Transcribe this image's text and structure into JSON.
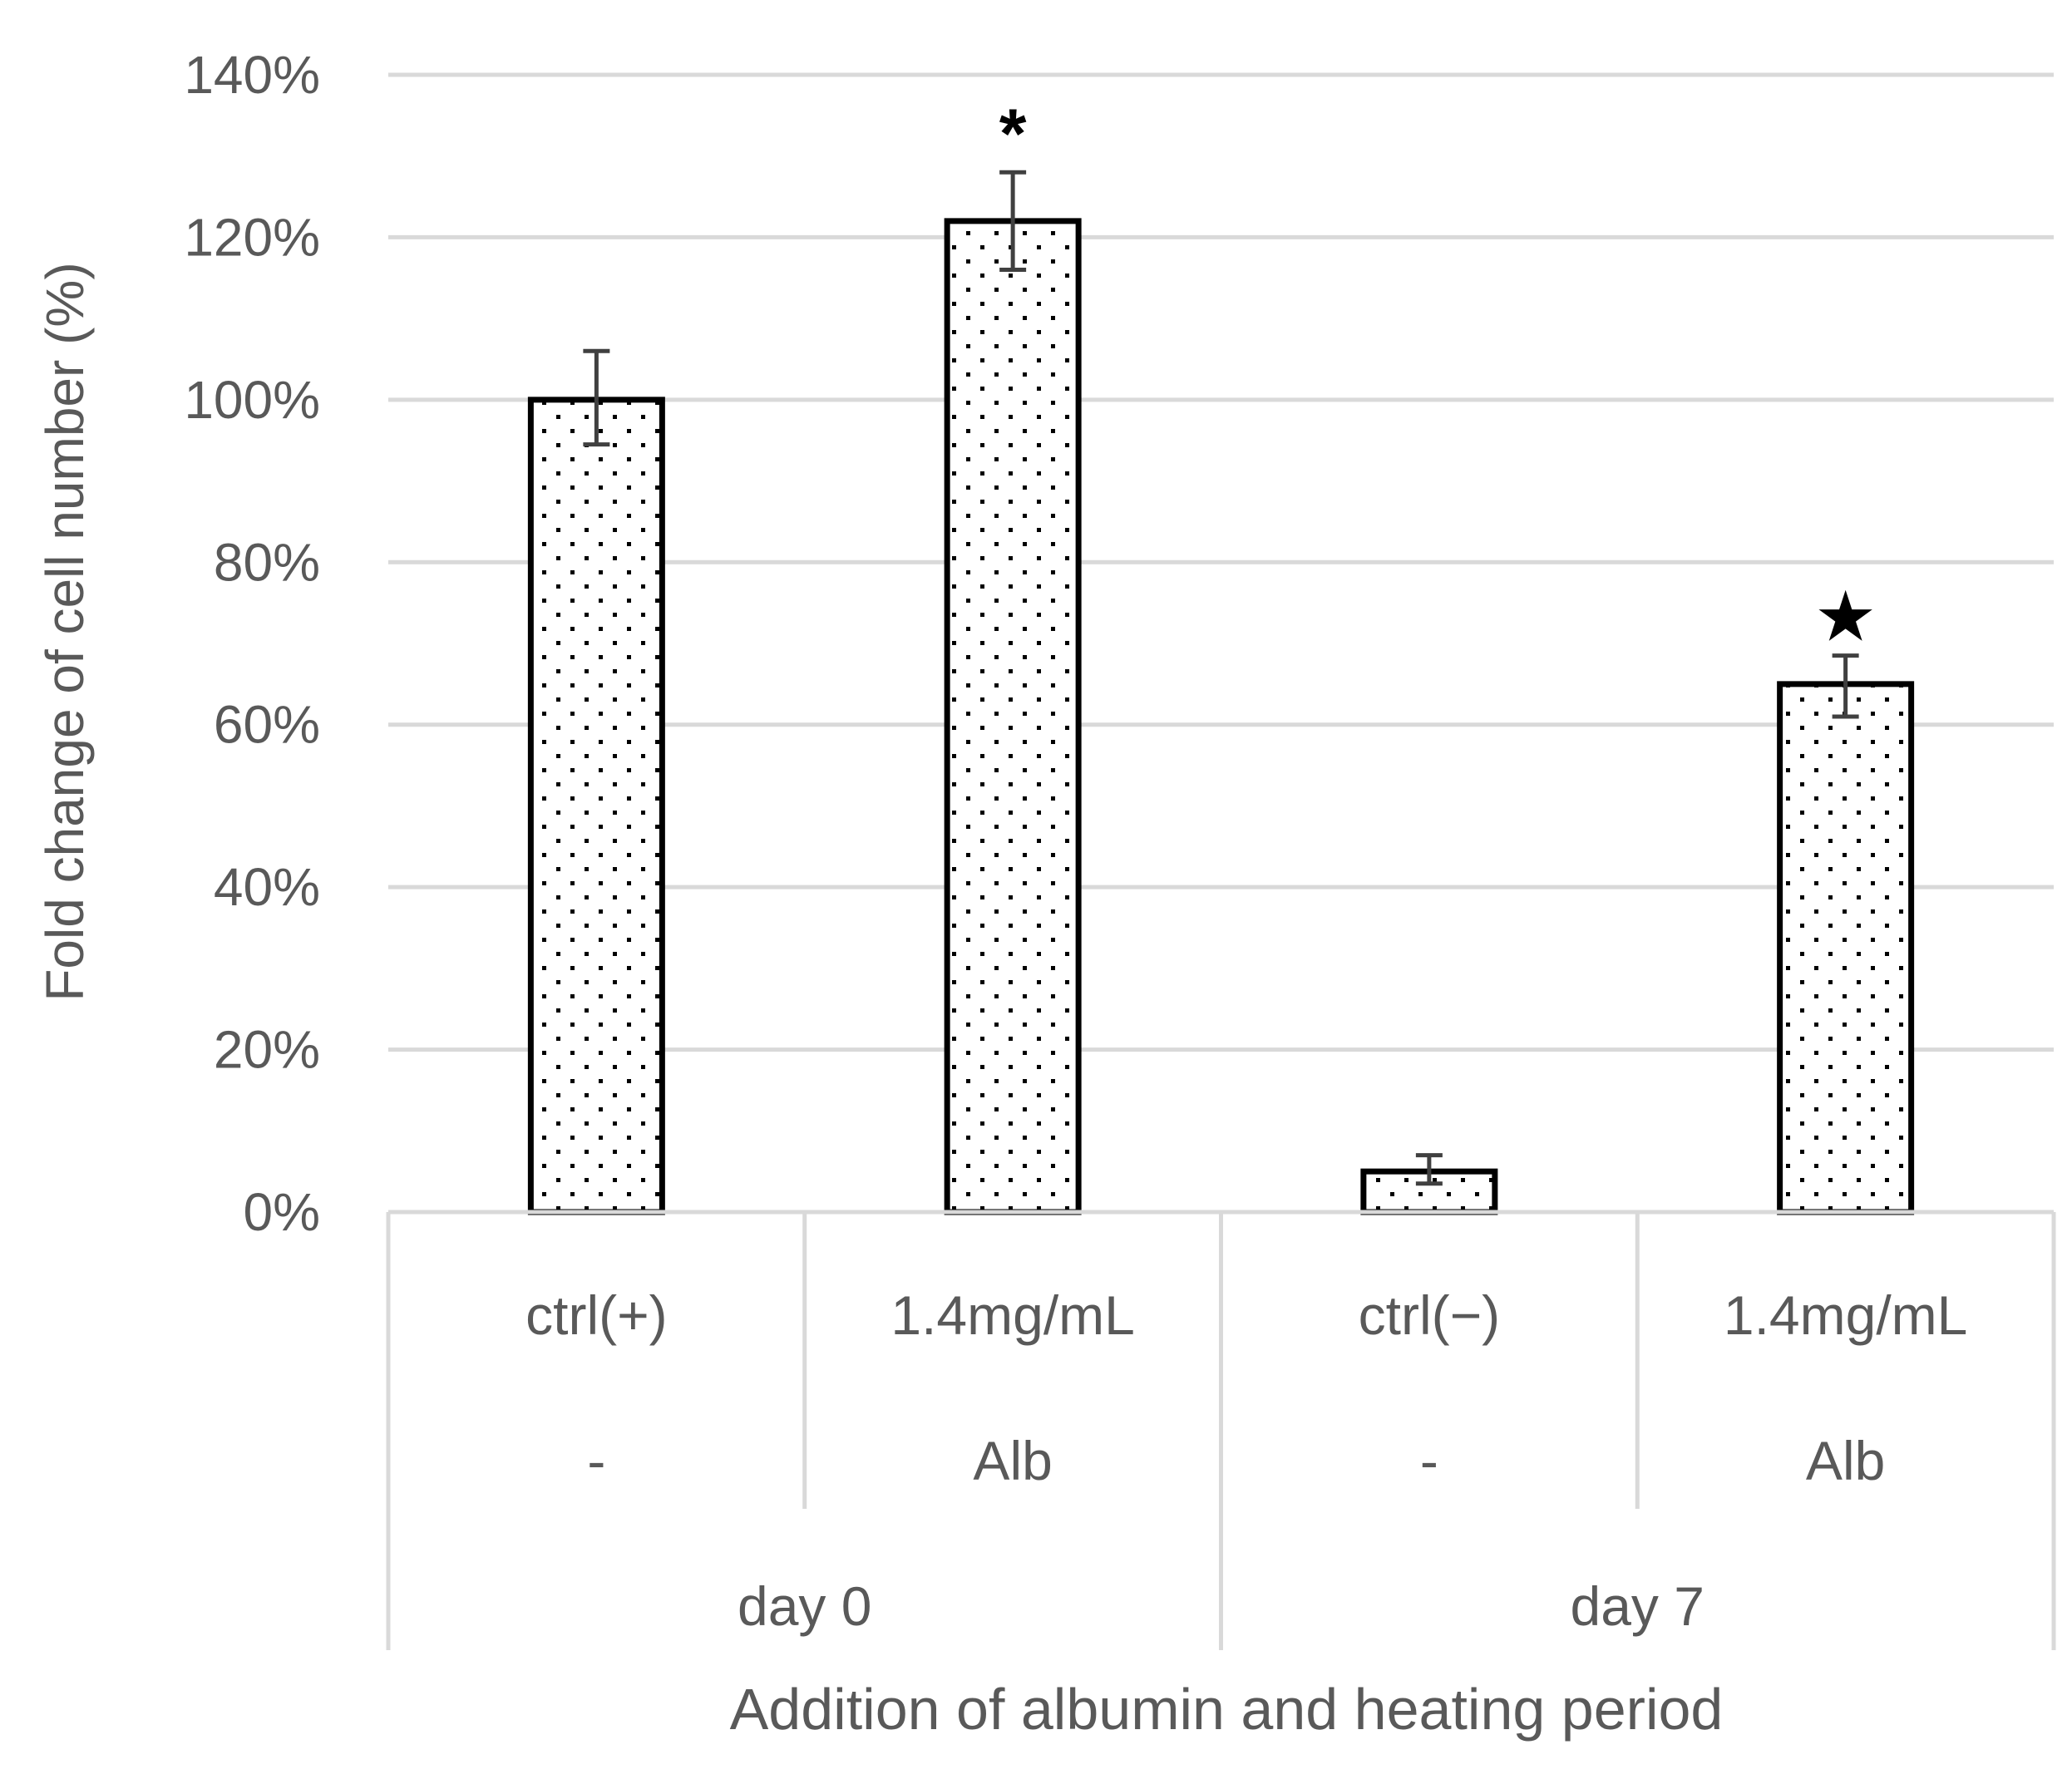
{
  "chart_data": {
    "type": "bar",
    "ylabel": "Fold change of cell number (%)",
    "xlabel": "Addition of albumin and heating period",
    "ylim": [
      0,
      140
    ],
    "yticks": [
      "0%",
      "20%",
      "40%",
      "60%",
      "80%",
      "100%",
      "120%",
      "140%"
    ],
    "grid": true,
    "legend": "none",
    "categories": [
      {
        "level1": "ctrl(+)",
        "level2": "-",
        "group": "day 0"
      },
      {
        "level1": "1.4mg/mL",
        "level2": "Alb",
        "group": "day 0"
      },
      {
        "level1": "ctrl(−)",
        "level2": "-",
        "group": "day 7"
      },
      {
        "level1": "1.4mg/mL",
        "level2": "Alb",
        "group": "day 7"
      }
    ],
    "groups": [
      "day 0",
      "day 7"
    ],
    "values": [
      100,
      122,
      5,
      65
    ],
    "error_low": [
      94.5,
      116,
      3.5,
      61
    ],
    "error_high": [
      106,
      128,
      7,
      68.5
    ],
    "markers": [
      "",
      "*",
      "",
      "★"
    ],
    "colors": {
      "bar_fill": "#ffffff",
      "bar_stroke": "#000000",
      "dot": "#000000",
      "grid": "#d9d9d9",
      "text": "#595959",
      "error_bar": "#404040"
    }
  }
}
